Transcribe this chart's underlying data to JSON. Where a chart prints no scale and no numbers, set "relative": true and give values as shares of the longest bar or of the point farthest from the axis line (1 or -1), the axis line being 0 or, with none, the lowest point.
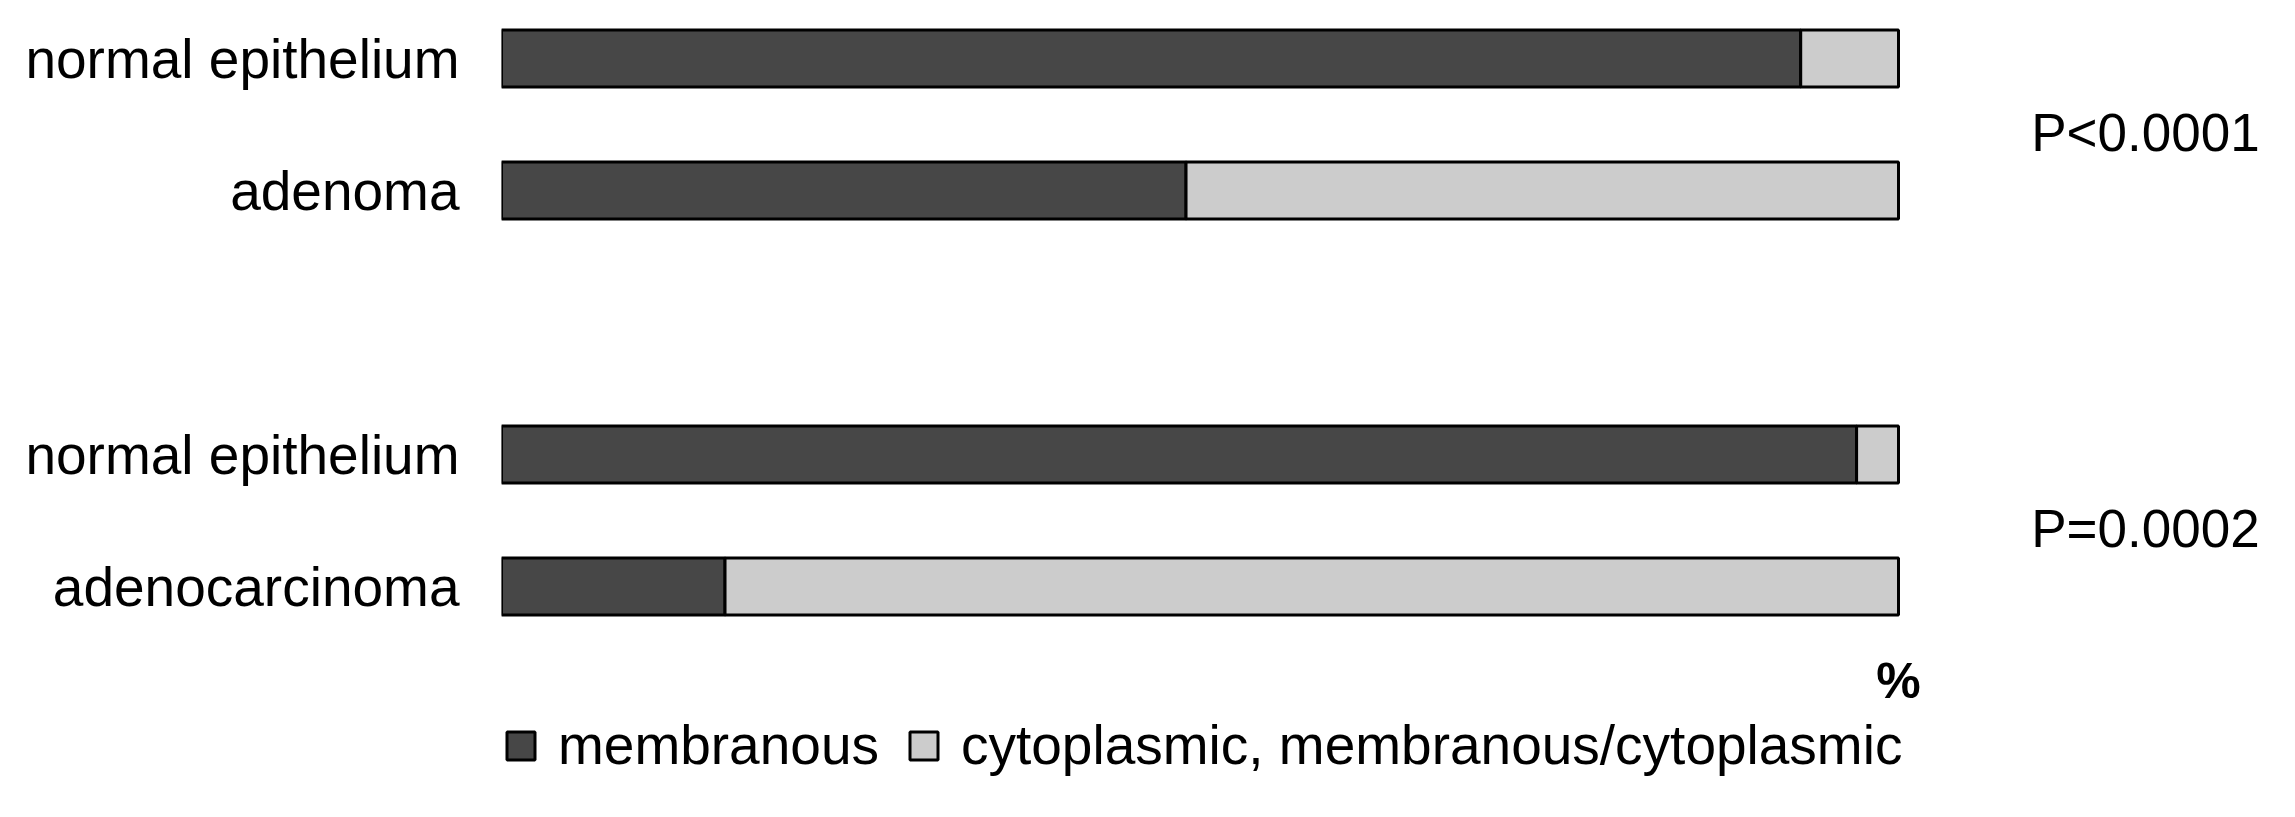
{
  "chart_data": {
    "type": "bar",
    "orientation": "horizontal",
    "stacked": true,
    "relative": true,
    "categories": [
      "normal epithelium",
      "adenoma",
      null,
      "normal epithelium",
      "adenocarcinoma"
    ],
    "series": [
      {
        "name": "membranous",
        "color": "#474747",
        "values": [
          0.93,
          0.49,
          null,
          0.97,
          0.16
        ]
      },
      {
        "name": "cytoplasmic, membranous/cytoplasmic",
        "color": "#cccccc",
        "values": [
          0.07,
          0.51,
          null,
          0.03,
          0.84
        ]
      }
    ],
    "xlabel": "%",
    "annotations": [
      "P<0.0001",
      "P=0.0002"
    ],
    "legend": "bottom"
  }
}
